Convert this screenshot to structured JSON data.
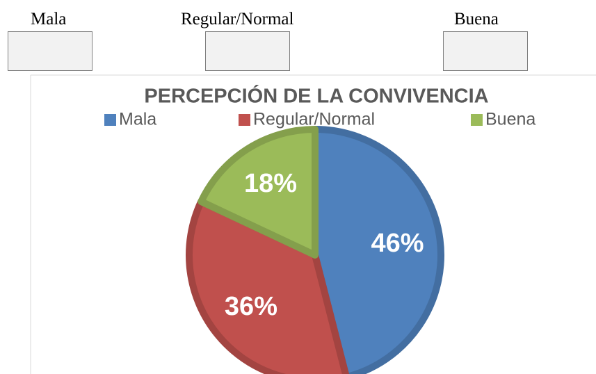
{
  "form": {
    "options": [
      "Mala",
      "Regular/Normal",
      "Buena"
    ]
  },
  "chart_data": {
    "type": "pie",
    "title": "PERCEPCIÓN DE LA CONVIVENCIA",
    "categories": [
      "Mala",
      "Regular/Normal",
      "Buena"
    ],
    "values": [
      46,
      36,
      18
    ],
    "value_labels": [
      "46%",
      "36%",
      "18%"
    ],
    "colors": [
      "#4f81bd",
      "#c0504d",
      "#9bbb59"
    ],
    "legend": "top"
  }
}
